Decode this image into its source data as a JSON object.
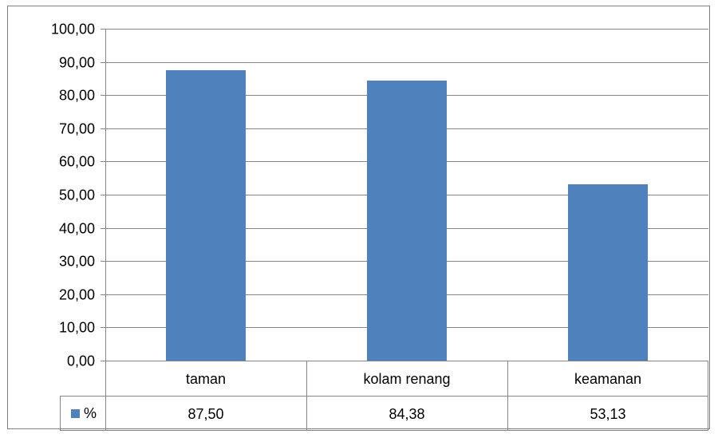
{
  "chart_data": {
    "type": "bar",
    "categories": [
      "taman",
      "kolam renang",
      "keamanan"
    ],
    "series": [
      {
        "name": "%",
        "values": [
          87.5,
          84.38,
          53.13
        ],
        "color": "#4F81BD"
      }
    ],
    "value_labels": [
      "87,50",
      "84,38",
      "53,13"
    ],
    "y_tick_labels": [
      "0,00",
      "10,00",
      "20,00",
      "30,00",
      "40,00",
      "50,00",
      "60,00",
      "70,00",
      "80,00",
      "90,00",
      "100,00"
    ],
    "ylim": [
      0,
      100
    ],
    "y_step": 10,
    "grid": true,
    "legend": "data-table"
  }
}
